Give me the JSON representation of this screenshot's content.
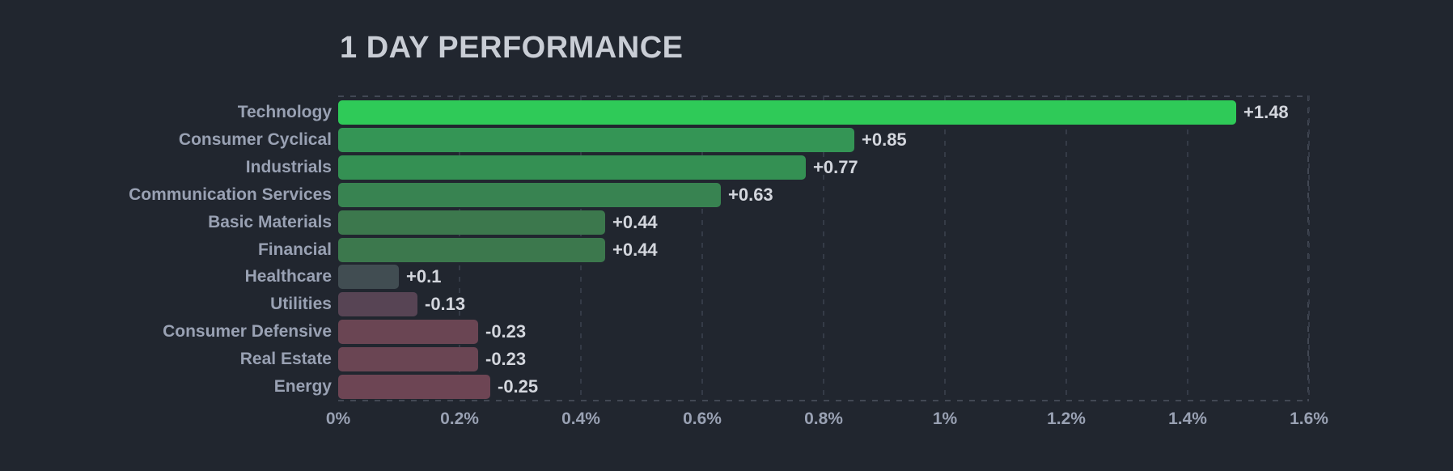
{
  "chart_data": {
    "type": "bar",
    "orientation": "horizontal",
    "title": "1 DAY PERFORMANCE",
    "categories": [
      "Technology",
      "Consumer Cyclical",
      "Industrials",
      "Communication Services",
      "Basic Materials",
      "Financial",
      "Healthcare",
      "Utilities",
      "Consumer Defensive",
      "Real Estate",
      "Energy"
    ],
    "values": [
      1.48,
      0.85,
      0.77,
      0.63,
      0.44,
      0.44,
      0.1,
      -0.13,
      -0.23,
      -0.23,
      -0.25
    ],
    "value_labels": [
      "+1.48",
      "+0.85",
      "+0.77",
      "+0.63",
      "+0.44",
      "+0.44",
      "+0.1",
      "-0.13",
      "-0.23",
      "-0.23",
      "-0.25"
    ],
    "bar_colors": [
      "#2fca58",
      "#349555",
      "#349053",
      "#388351",
      "#3c784d",
      "#3c784d",
      "#414d52",
      "#574454",
      "#6a4553",
      "#6a4553",
      "#6d4554"
    ],
    "xlabel": "",
    "ylabel": "",
    "xlim": [
      0,
      1.6
    ],
    "xticks": [
      0,
      0.2,
      0.4,
      0.6,
      0.8,
      1,
      1.2,
      1.4,
      1.6
    ],
    "xtick_labels": [
      "0%",
      "0.2%",
      "0.4%",
      "0.6%",
      "0.8%",
      "1%",
      "1.2%",
      "1.4%",
      "1.6%"
    ],
    "grid": "dashed vertical gridlines at every 0.2% tick; dashed plot border on top, right and bottom",
    "legend": "none",
    "bar_length_encoding": "bars extend right from 0 by absolute value; color encodes sign and magnitude (bright green = strong gain, gray = flat, maroon = loss)"
  },
  "colors": {
    "background": "#21262f",
    "title_text": "#c9cdd5",
    "category_text": "#99a1b3",
    "tick_text": "#99a1b3",
    "value_text": "#d3d6dd",
    "plot_border_dash": "#424854",
    "gridline_dash": "#353b47",
    "positive_strong": "#2fca58",
    "positive_mid": "#3c784d",
    "neutral": "#414d52",
    "negative": "#6d4554"
  }
}
